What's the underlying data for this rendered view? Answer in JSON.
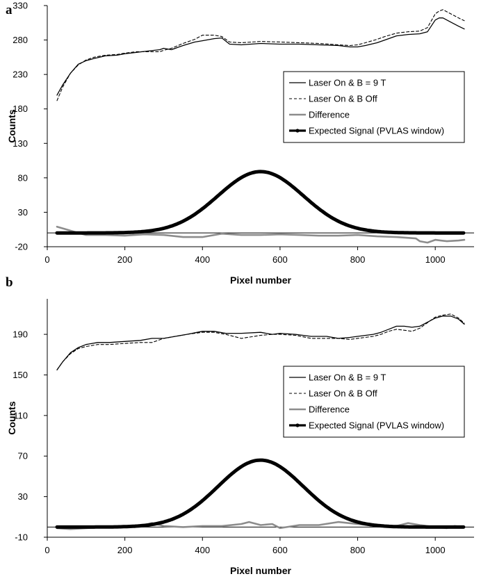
{
  "chart_data": [
    {
      "panel": "a",
      "type": "line",
      "xlabel": "Pixel number",
      "ylabel": "Counts",
      "xlim": [
        0,
        1100
      ],
      "ylim": [
        -20,
        330
      ],
      "xticks": [
        "0",
        "200",
        "400",
        "600",
        "800",
        "1000"
      ],
      "yticks": [
        "-20",
        "30",
        "80",
        "130",
        "180",
        "230",
        "280",
        "330"
      ],
      "zero_line": true,
      "legend_position": "right, above curves",
      "legend": [
        "Laser On & B = 9 T",
        "Laser On & B Off",
        "Difference",
        "Expected Signal (PVLAS window)"
      ],
      "series": [
        {
          "name": "Laser On & B = 9 T",
          "style": "solid-thin",
          "x": [
            25,
            40,
            60,
            80,
            100,
            120,
            150,
            180,
            200,
            230,
            260,
            290,
            300,
            320,
            350,
            380,
            400,
            430,
            450,
            470,
            500,
            550,
            600,
            650,
            700,
            750,
            780,
            800,
            820,
            850,
            870,
            900,
            930,
            960,
            980,
            1000,
            1010,
            1020,
            1040,
            1060,
            1075
          ],
          "y": [
            200,
            215,
            232,
            245,
            250,
            253,
            257,
            258,
            260,
            262,
            264,
            266,
            268,
            266,
            272,
            277,
            279,
            282,
            283,
            274,
            273,
            275,
            274,
            274,
            273,
            272,
            270,
            270,
            272,
            276,
            280,
            286,
            288,
            289,
            292,
            309,
            312,
            312,
            306,
            300,
            296
          ]
        },
        {
          "name": "Laser On & B Off",
          "style": "dashed",
          "x": [
            25,
            40,
            60,
            80,
            100,
            120,
            150,
            180,
            200,
            230,
            260,
            290,
            300,
            320,
            350,
            380,
            400,
            430,
            450,
            470,
            500,
            550,
            600,
            650,
            700,
            750,
            780,
            800,
            820,
            850,
            870,
            900,
            930,
            960,
            980,
            1000,
            1010,
            1020,
            1040,
            1060,
            1075
          ],
          "y": [
            192,
            212,
            232,
            244,
            251,
            255,
            258,
            259,
            261,
            263,
            263,
            263,
            265,
            268,
            275,
            281,
            287,
            287,
            285,
            277,
            276,
            278,
            277,
            276,
            275,
            273,
            272,
            273,
            276,
            281,
            285,
            290,
            292,
            293,
            298,
            318,
            322,
            324,
            318,
            312,
            308
          ]
        },
        {
          "name": "Difference",
          "style": "gray-medium",
          "x": [
            25,
            50,
            80,
            100,
            150,
            200,
            250,
            300,
            350,
            400,
            450,
            500,
            550,
            600,
            650,
            700,
            750,
            800,
            850,
            900,
            950,
            960,
            980,
            1000,
            1030,
            1060,
            1075
          ],
          "y": [
            9,
            5,
            0,
            -3,
            -3,
            -4,
            -2,
            -3,
            -6,
            -6,
            -1,
            -3,
            -3,
            -2,
            -3,
            -4,
            -4,
            -3,
            -5,
            -6,
            -8,
            -12,
            -14,
            -10,
            -12,
            -11,
            -10
          ]
        },
        {
          "name": "Expected Signal (PVLAS window)",
          "style": "thick",
          "gaussian": {
            "amplitude": 89,
            "center": 550,
            "sigma": 110,
            "xmin": 25,
            "xmax": 1075
          }
        }
      ]
    },
    {
      "panel": "b",
      "type": "line",
      "xlabel": "Pixel number",
      "ylabel": "Counts",
      "xlim": [
        0,
        1100
      ],
      "ylim": [
        -10,
        225
      ],
      "xticks": [
        "0",
        "200",
        "400",
        "600",
        "800",
        "1000"
      ],
      "yticks": [
        "-10",
        "30",
        "70",
        "110",
        "150",
        "190"
      ],
      "zero_line": true,
      "legend_position": "right, above curves",
      "legend": [
        "Laser On & B = 9 T",
        "Laser On & B Off",
        "Difference",
        "Expected Signal (PVLAS window)"
      ],
      "series": [
        {
          "name": "Laser On & B = 9 T",
          "style": "solid-thin",
          "x": [
            25,
            40,
            60,
            80,
            100,
            130,
            160,
            200,
            240,
            270,
            300,
            330,
            360,
            400,
            430,
            460,
            500,
            550,
            580,
            600,
            640,
            680,
            720,
            750,
            780,
            800,
            840,
            860,
            880,
            900,
            920,
            940,
            960,
            1000,
            1020,
            1040,
            1060,
            1075
          ],
          "y": [
            155,
            163,
            172,
            177,
            180,
            182,
            182,
            183,
            184,
            186,
            186,
            188,
            190,
            193,
            193,
            191,
            191,
            192,
            190,
            191,
            190,
            188,
            188,
            186,
            187,
            188,
            190,
            192,
            195,
            198,
            198,
            197,
            198,
            206,
            208,
            208,
            205,
            200
          ]
        },
        {
          "name": "Laser On & B Off",
          "style": "dashed",
          "x": [
            25,
            40,
            60,
            80,
            100,
            130,
            160,
            200,
            240,
            270,
            300,
            330,
            360,
            400,
            430,
            460,
            500,
            550,
            580,
            600,
            640,
            680,
            720,
            750,
            780,
            800,
            840,
            860,
            880,
            900,
            920,
            940,
            960,
            1000,
            1020,
            1040,
            1060,
            1075
          ],
          "y": [
            155,
            163,
            171,
            176,
            178,
            180,
            180,
            181,
            182,
            182,
            186,
            188,
            190,
            192,
            192,
            190,
            186,
            189,
            190,
            190,
            189,
            186,
            186,
            186,
            185,
            186,
            188,
            190,
            193,
            195,
            194,
            193,
            196,
            207,
            209,
            210,
            206,
            201
          ]
        },
        {
          "name": "Difference",
          "style": "gray-medium",
          "x": [
            25,
            60,
            100,
            150,
            200,
            250,
            270,
            300,
            350,
            400,
            450,
            500,
            520,
            550,
            580,
            600,
            650,
            700,
            750,
            800,
            850,
            900,
            930,
            960,
            1000,
            1030,
            1050,
            1075
          ],
          "y": [
            -1,
            -2,
            -1,
            0,
            1,
            2,
            4,
            1,
            0,
            1,
            1,
            3,
            5,
            2,
            3,
            -1,
            2,
            2,
            5,
            3,
            1,
            1,
            4,
            2,
            0,
            -1,
            1,
            0
          ]
        },
        {
          "name": "Expected Signal (PVLAS window)",
          "style": "thick",
          "gaussian": {
            "amplitude": 66,
            "center": 550,
            "sigma": 110,
            "xmin": 25,
            "xmax": 1075
          }
        }
      ]
    }
  ]
}
